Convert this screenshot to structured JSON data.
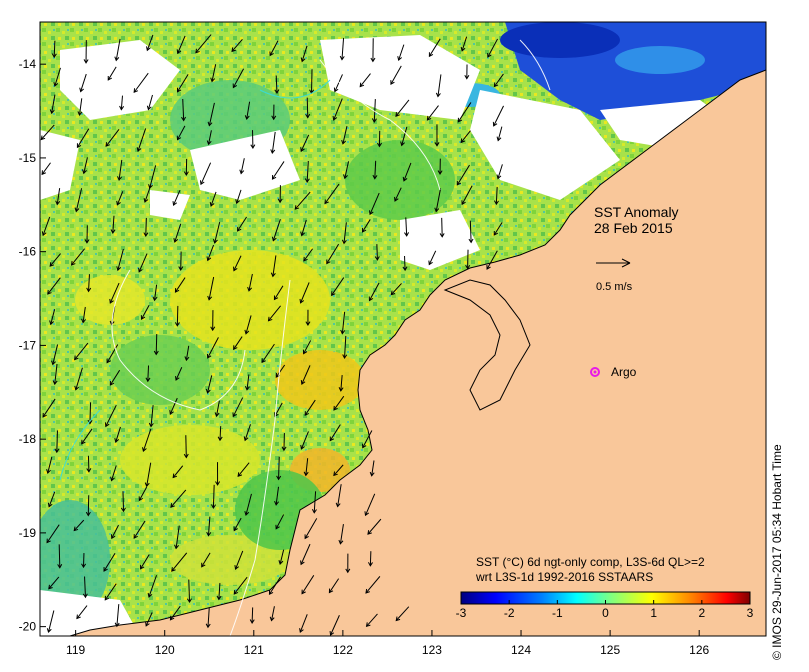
{
  "map": {
    "title_line1": "SST Anomaly",
    "title_line2": "28 Feb 2015",
    "vector_scale_label": "0.5 m/s",
    "float_label": "Argo",
    "caption_line1": "SST (°C) 6d ngt-only comp, L3S-6d QL>=2",
    "caption_line2": "wrt L3S-1d 1992-2016 SSTAARS",
    "credit": "© IMOS 29-Jun-2017 05:34 Hobart Time",
    "lon_ticks": [
      "119",
      "120",
      "121",
      "122",
      "123",
      "124",
      "125",
      "126"
    ],
    "lat_ticks": [
      "-14",
      "-15",
      "-16",
      "-17",
      "-18",
      "-19",
      "-20"
    ],
    "colorbar_ticks": [
      "-3",
      "-2",
      "-1",
      "0",
      "1",
      "2",
      "3"
    ],
    "colorbar_range": [
      -3,
      3
    ],
    "lon_range": [
      118.6,
      126.75
    ],
    "lat_range": [
      -20.1,
      -13.55
    ],
    "argo_position": {
      "lon": 124.78,
      "lat": -17.27
    },
    "colors": {
      "land": "#F9C79A",
      "no_data": "#ffffff",
      "argo_marker": "#E81AE8",
      "colorbar": [
        "#00007F",
        "#0000FF",
        "#0080FF",
        "#00FFFF",
        "#80FF80",
        "#FFFF00",
        "#FF8000",
        "#FF0000",
        "#7F0000"
      ]
    }
  }
}
